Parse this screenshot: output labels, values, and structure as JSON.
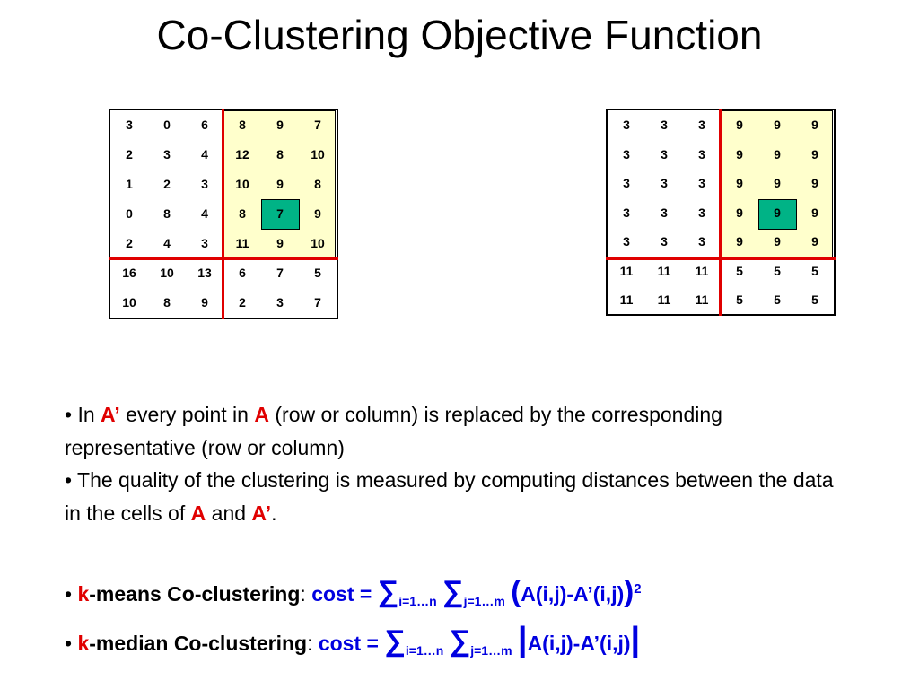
{
  "title": "Co-Clustering Objective Function",
  "matrix_a": [
    [
      "3",
      "0",
      "6",
      "8",
      "9",
      "7"
    ],
    [
      "2",
      "3",
      "4",
      "12",
      "8",
      "10"
    ],
    [
      "1",
      "2",
      "3",
      "10",
      "9",
      "8"
    ],
    [
      "0",
      "8",
      "4",
      "8",
      "7",
      "9"
    ],
    [
      "2",
      "4",
      "3",
      "11",
      "9",
      "10"
    ],
    [
      "16",
      "10",
      "13",
      "6",
      "7",
      "5"
    ],
    [
      "10",
      "8",
      "9",
      "2",
      "3",
      "7"
    ]
  ],
  "matrix_a_prime": [
    [
      "3",
      "3",
      "3",
      "9",
      "9",
      "9"
    ],
    [
      "3",
      "3",
      "3",
      "9",
      "9",
      "9"
    ],
    [
      "3",
      "3",
      "3",
      "9",
      "9",
      "9"
    ],
    [
      "3",
      "3",
      "3",
      "9",
      "9",
      "9"
    ],
    [
      "3",
      "3",
      "3",
      "9",
      "9",
      "9"
    ],
    [
      "11",
      "11",
      "11",
      "5",
      "5",
      "5"
    ],
    [
      "11",
      "11",
      "11",
      "5",
      "5",
      "5"
    ]
  ],
  "colors": {
    "highlight": "#00b386",
    "block": "#ffffcc",
    "separator": "#e00000",
    "emphasis_red": "#e00000",
    "formula_blue": "#0000e0"
  },
  "bullet1": {
    "b": "•",
    "t1": " In ",
    "aprime": "A’",
    "t2": " every point in ",
    "a": "A",
    "t3": " (row or column) is replaced by the corresponding representative (row or column)"
  },
  "bullet2": {
    "b": "•",
    "t1": " The quality of the clustering is measured by computing distances between the data in the cells of ",
    "a": "A",
    "t2": " and ",
    "aprime": "A’",
    "t3": "."
  },
  "kmeans": {
    "b": "•",
    "k": "k",
    "name": "-means Co-clustering",
    "colon": ":",
    "cost": "cost =",
    "sum": "∑",
    "i_range": "i=1…n",
    "j_range": "j=1…m",
    "open": "(",
    "expr": "A(i,j)-A’(i,j)",
    "close": ")",
    "power": "2"
  },
  "kmedian": {
    "b": "•",
    "k": "k",
    "name": "-median Co-clustering",
    "colon": ":",
    "cost": "cost =",
    "sum": "∑",
    "i_range": "i=1…n",
    "j_range": "j=1…m",
    "open": "|",
    "expr": "A(i,j)-A’(i,j)",
    "close": "|"
  }
}
